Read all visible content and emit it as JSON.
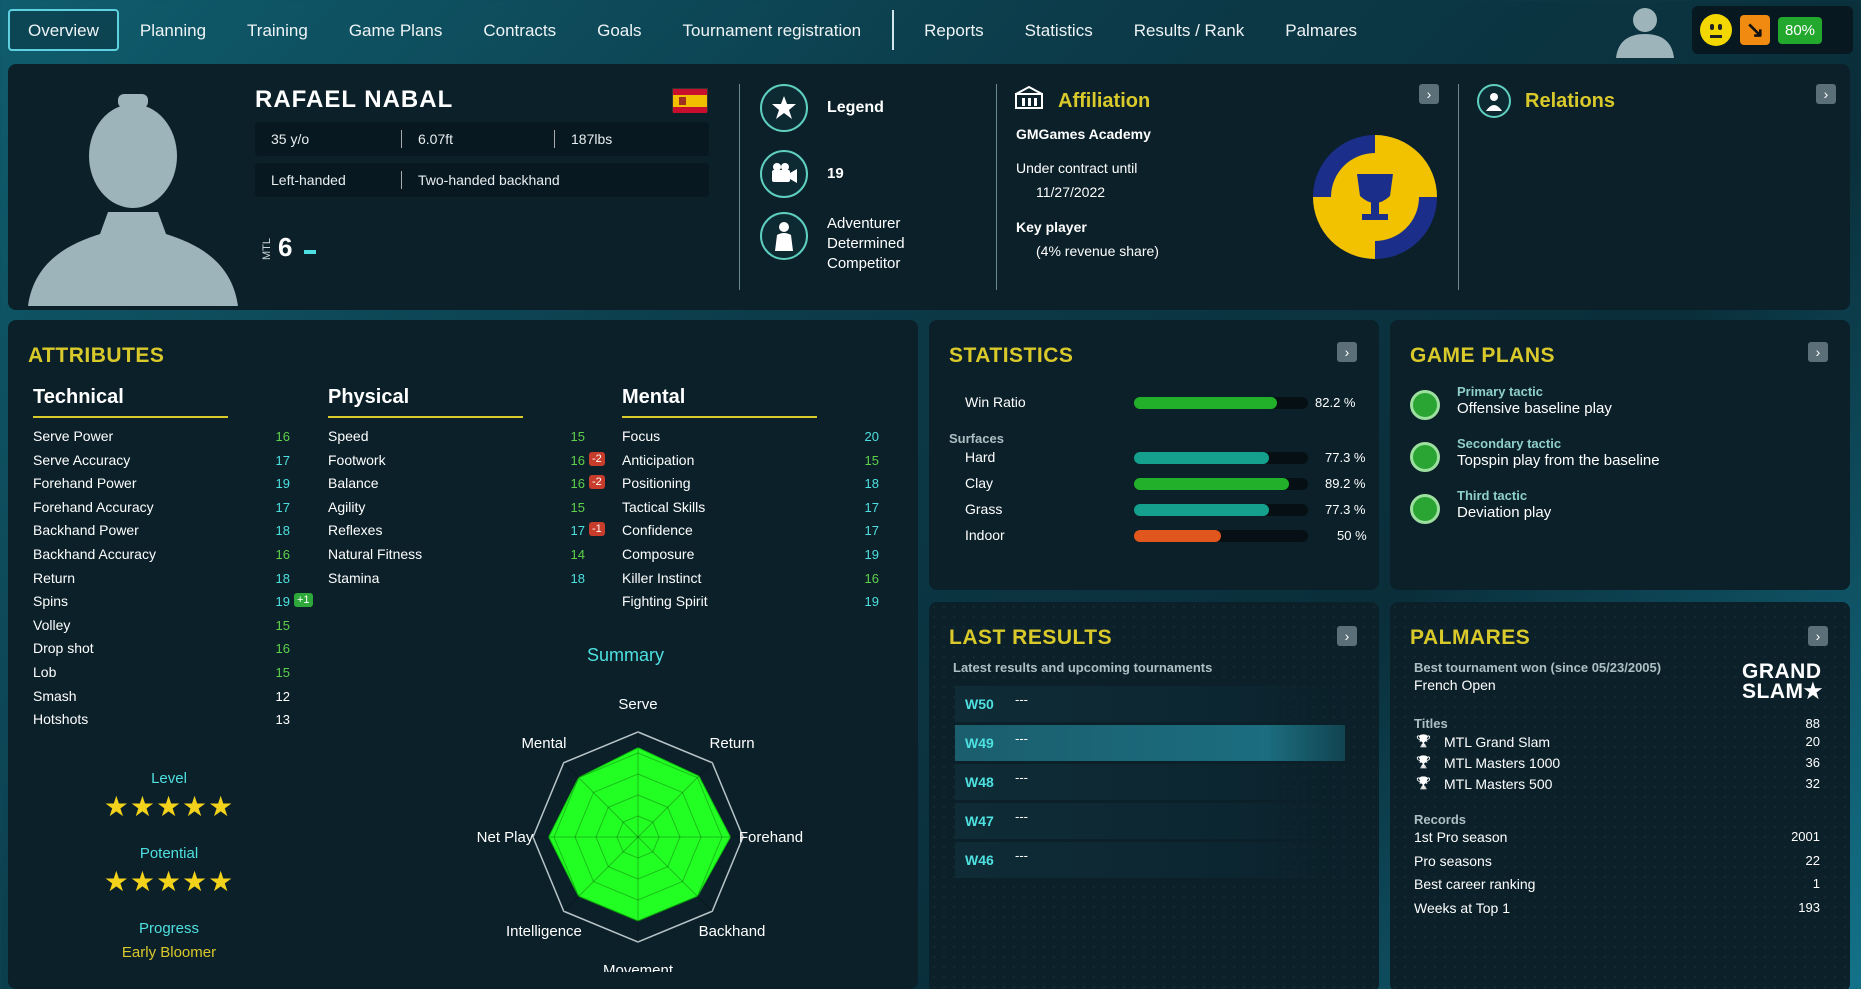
{
  "nav": {
    "items": [
      "Overview",
      "Planning",
      "Training",
      "Game Plans",
      "Contracts",
      "Goals",
      "Tournament registration"
    ],
    "items2": [
      "Reports",
      "Statistics",
      "Results / Rank",
      "Palmares"
    ],
    "active": "Overview"
  },
  "status": {
    "mood_icon": "neutral-face-icon",
    "trend_icon": "trend-down-icon",
    "fitness": "80%"
  },
  "profile": {
    "name": "RAFAEL NABAL",
    "age": "35 y/o",
    "height": "6.07ft",
    "weight": "187lbs",
    "hand": "Left-handed",
    "backhand": "Two-handed backhand",
    "mtl_label": "MTL",
    "mtl_value": "6"
  },
  "traits": {
    "rank_title": "Legend",
    "fans": "19",
    "personality": [
      "Adventurer",
      "Determined",
      "Competitor"
    ]
  },
  "affiliation": {
    "title": "Affiliation",
    "club": "GMGames Academy",
    "contract_label": "Under contract until",
    "contract_date": "11/27/2022",
    "key_label": "Key player",
    "key_value": "(4% revenue share)",
    "logo_colors": [
      "#f2c200",
      "#1b2f8a"
    ]
  },
  "relations": {
    "title": "Relations"
  },
  "attributes": {
    "title": "ATTRIBUTES",
    "columns": [
      {
        "title": "Technical",
        "rows": [
          {
            "name": "Serve Power",
            "value": "16"
          },
          {
            "name": "Serve Accuracy",
            "value": "17"
          },
          {
            "name": "Forehand Power",
            "value": "19"
          },
          {
            "name": "Forehand Accuracy",
            "value": "17"
          },
          {
            "name": "Backhand Power",
            "value": "18"
          },
          {
            "name": "Backhand Accuracy",
            "value": "16"
          },
          {
            "name": "Return",
            "value": "18"
          },
          {
            "name": "Spins",
            "value": "19",
            "delta": "+1"
          },
          {
            "name": "Volley",
            "value": "15"
          },
          {
            "name": "Drop shot",
            "value": "16"
          },
          {
            "name": "Lob",
            "value": "15"
          },
          {
            "name": "Smash",
            "value": "12"
          },
          {
            "name": "Hotshots",
            "value": "13"
          }
        ]
      },
      {
        "title": "Physical",
        "rows": [
          {
            "name": "Speed",
            "value": "15"
          },
          {
            "name": "Footwork",
            "value": "16",
            "delta": "-2"
          },
          {
            "name": "Balance",
            "value": "16",
            "delta": "-2"
          },
          {
            "name": "Agility",
            "value": "15"
          },
          {
            "name": "Reflexes",
            "value": "17",
            "delta": "-1"
          },
          {
            "name": "Natural Fitness",
            "value": "14"
          },
          {
            "name": "Stamina",
            "value": "18"
          }
        ]
      },
      {
        "title": "Mental",
        "rows": [
          {
            "name": "Focus",
            "value": "20"
          },
          {
            "name": "Anticipation",
            "value": "15"
          },
          {
            "name": "Positioning",
            "value": "18"
          },
          {
            "name": "Tactical Skills",
            "value": "17"
          },
          {
            "name": "Confidence",
            "value": "17"
          },
          {
            "name": "Composure",
            "value": "19"
          },
          {
            "name": "Killer Instinct",
            "value": "16"
          },
          {
            "name": "Fighting Spirit",
            "value": "19"
          }
        ]
      }
    ],
    "level_label": "Level",
    "level_stars": 5,
    "potential_label": "Potential",
    "potential_stars": 5,
    "progress_label": "Progress",
    "progress_value": "Early Bloomer",
    "summary_title": "Summary"
  },
  "chart_data": {
    "type": "radar",
    "axes": [
      "Serve",
      "Return",
      "Forehand",
      "Backhand",
      "Movement",
      "Intelligence",
      "Net Play",
      "Mental"
    ],
    "values": [
      0.85,
      0.82,
      0.88,
      0.8,
      0.8,
      0.8,
      0.85,
      0.8
    ],
    "max": 1,
    "fill_color": "#22ff22"
  },
  "statistics": {
    "title": "STATISTICS",
    "win_ratio_label": "Win Ratio",
    "win_ratio": 82.2,
    "win_ratio_text": "82.2 %",
    "surfaces_label": "Surfaces",
    "surfaces": [
      {
        "name": "Hard",
        "value": 77.3,
        "text": "77.3 %",
        "color": "#14a08c"
      },
      {
        "name": "Clay",
        "value": 89.2,
        "text": "89.2 %",
        "color": "#22b02a"
      },
      {
        "name": "Grass",
        "value": 77.3,
        "text": "77.3 %",
        "color": "#14a08c"
      },
      {
        "name": "Indoor",
        "value": 50,
        "text": "50 %",
        "color": "#e0561c"
      }
    ],
    "win_color": "#22b02a"
  },
  "gameplans": {
    "title": "GAME PLANS",
    "tactics": [
      {
        "label": "Primary tactic",
        "value": "Offensive baseline play"
      },
      {
        "label": "Secondary tactic",
        "value": "Topspin play from the baseline"
      },
      {
        "label": "Third tactic",
        "value": "Deviation play"
      }
    ]
  },
  "results": {
    "title": "LAST RESULTS",
    "subtitle": "Latest results and upcoming tournaments",
    "rows": [
      {
        "week": "W50",
        "value": "---"
      },
      {
        "week": "W49",
        "value": "---"
      },
      {
        "week": "W48",
        "value": "---"
      },
      {
        "week": "W47",
        "value": "---"
      },
      {
        "week": "W46",
        "value": "---"
      }
    ]
  },
  "palmares": {
    "title": "PALMARES",
    "best_label": "Best tournament won (since 05/23/2005)",
    "best_value": "French Open",
    "grand_slam_line1": "GRAND",
    "grand_slam_line2": "SLAM★",
    "titles_label": "Titles",
    "titles_total": "88",
    "titles": [
      {
        "name": "MTL Grand Slam",
        "value": "20"
      },
      {
        "name": "MTL Masters 1000",
        "value": "36"
      },
      {
        "name": "MTL Masters 500",
        "value": "32"
      }
    ],
    "records_label": "Records",
    "records": [
      {
        "name": "1st Pro season",
        "value": "2001"
      },
      {
        "name": "Pro seasons",
        "value": "22"
      },
      {
        "name": "Best career ranking",
        "value": "1"
      },
      {
        "name": "Weeks at Top 1",
        "value": "193"
      }
    ]
  }
}
